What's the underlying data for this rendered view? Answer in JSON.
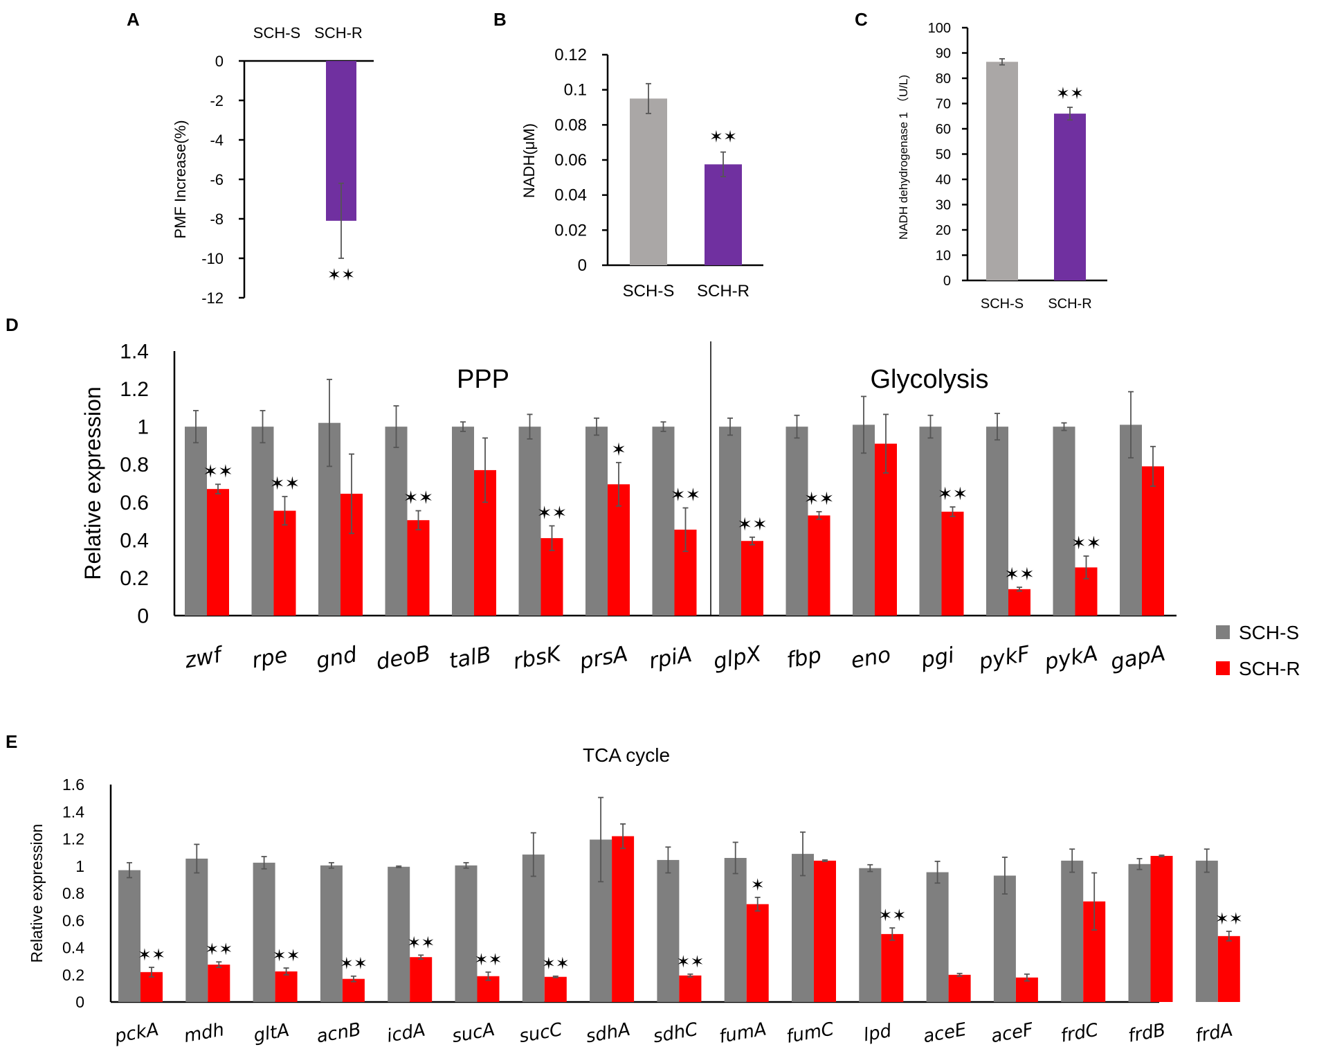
{
  "legend": {
    "s_label": "SCH-S",
    "r_label": "SCH-R",
    "s_color": "#7f7f7f",
    "r_color": "#ff0000"
  },
  "chart_data": [
    {
      "panel": "A",
      "type": "bar",
      "ylabel": "PMF Increase(%)",
      "ylim": [
        -12,
        0
      ],
      "yticks": [
        "0",
        "-2",
        "-4",
        "-6",
        "-8",
        "-10",
        "-12"
      ],
      "categories": [
        "SCH-S",
        "SCH-R"
      ],
      "values": [
        0,
        -8.1
      ],
      "errors": [
        0,
        1.9
      ],
      "bar_color": "#7030a0",
      "significance": [
        "",
        "**"
      ]
    },
    {
      "panel": "B",
      "type": "bar",
      "ylabel": "NADH(μM)",
      "ylim": [
        0,
        0.12
      ],
      "yticks": [
        "0.12",
        "0.1",
        "0.08",
        "0.06",
        "0.04",
        "0.02",
        "0"
      ],
      "categories": [
        "SCH-S",
        "SCH-R"
      ],
      "values": [
        0.095,
        0.0575
      ],
      "errors": [
        0.0085,
        0.007
      ],
      "colors": [
        "#aaa7a6",
        "#7030a0"
      ],
      "significance": [
        "",
        "**"
      ]
    },
    {
      "panel": "C",
      "type": "bar",
      "ylabel": "NADH dehydrogenase 1 （U/L)",
      "ylim": [
        0,
        100
      ],
      "yticks": [
        "100",
        "90",
        "80",
        "70",
        "60",
        "50",
        "40",
        "30",
        "20",
        "10",
        "0"
      ],
      "categories": [
        "SCH-S",
        "SCH-R"
      ],
      "values": [
        86.5,
        66
      ],
      "errors": [
        1.2,
        2.5
      ],
      "colors": [
        "#aaa7a6",
        "#7030a0"
      ],
      "significance": [
        "",
        "**"
      ]
    },
    {
      "panel": "D",
      "type": "bar",
      "ylabel": "Relative expression",
      "ylim": [
        0,
        1.4
      ],
      "yticks": [
        "1.4",
        "1.2",
        "1",
        "0.8",
        "0.6",
        "0.4",
        "0.2",
        "0"
      ],
      "group_labels": [
        "PPP",
        "Glycolysis"
      ],
      "categories": [
        "zwf",
        "rpe",
        "gnd",
        "deoB",
        "talB",
        "rbsK",
        "prsA",
        "rpiA",
        "glpX",
        "fbp",
        "eno",
        "pgi",
        "pykF",
        "pykA",
        "gapA"
      ],
      "series": [
        {
          "name": "SCH-S",
          "values": [
            1.0,
            1.0,
            1.02,
            1.0,
            1.0,
            1.0,
            1.0,
            1.0,
            1.0,
            1.0,
            1.01,
            1.0,
            1.0,
            1.0,
            1.01
          ],
          "errors": [
            0.085,
            0.085,
            0.23,
            0.11,
            0.025,
            0.065,
            0.045,
            0.025,
            0.045,
            0.06,
            0.15,
            0.06,
            0.07,
            0.02,
            0.175
          ]
        },
        {
          "name": "SCH-R",
          "values": [
            0.67,
            0.555,
            0.645,
            0.505,
            0.77,
            0.41,
            0.695,
            0.455,
            0.395,
            0.53,
            0.91,
            0.55,
            0.14,
            0.255,
            0.79
          ],
          "errors": [
            0.025,
            0.075,
            0.21,
            0.05,
            0.17,
            0.065,
            0.115,
            0.115,
            0.02,
            0.02,
            0.155,
            0.025,
            0.01,
            0.06,
            0.105
          ]
        }
      ],
      "significance": [
        "**",
        "**",
        "",
        "**",
        "",
        "**",
        "*",
        "**",
        "**",
        "**",
        "",
        "**",
        "**",
        "**",
        ""
      ]
    },
    {
      "panel": "E",
      "type": "bar",
      "title": "TCA cycle",
      "ylabel": "Relative expression",
      "ylim": [
        0,
        1.6
      ],
      "yticks": [
        "1.6",
        "1.4",
        "1.2",
        "1",
        "0.8",
        "0.6",
        "0.4",
        "0.2",
        "0"
      ],
      "categories": [
        "pckA",
        "mdh",
        "gltA",
        "acnB",
        "icdA",
        "sucA",
        "sucC",
        "sdhA",
        "sdhC",
        "fumA",
        "fumC",
        "lpd",
        "aceE",
        "aceF",
        "frdC",
        "frdB",
        "frdA"
      ],
      "series": [
        {
          "name": "SCH-S",
          "values": [
            0.97,
            1.055,
            1.025,
            1.005,
            0.995,
            1.005,
            1.085,
            1.195,
            1.045,
            1.06,
            1.09,
            0.985,
            0.955,
            0.93,
            1.04,
            1.015,
            1.04
          ],
          "errors": [
            0.055,
            0.105,
            0.045,
            0.02,
            0.005,
            0.02,
            0.16,
            0.31,
            0.095,
            0.115,
            0.16,
            0.025,
            0.08,
            0.135,
            0.085,
            0.04,
            0.085
          ]
        },
        {
          "name": "SCH-R",
          "values": [
            0.22,
            0.275,
            0.225,
            0.17,
            0.33,
            0.19,
            0.185,
            1.22,
            0.195,
            0.72,
            1.04,
            0.5,
            0.2,
            0.18,
            0.74,
            1.075,
            0.485
          ],
          "errors": [
            0.035,
            0.02,
            0.025,
            0.02,
            0.015,
            0.03,
            0.005,
            0.09,
            0.01,
            0.05,
            0.005,
            0.045,
            0.01,
            0.025,
            0.21,
            0.005,
            0.035
          ]
        }
      ],
      "significance": [
        "**",
        "**",
        "**",
        "**",
        "**",
        "**",
        "**",
        "",
        "**",
        "*",
        "",
        "**",
        "",
        "",
        "",
        "",
        "**"
      ]
    }
  ]
}
